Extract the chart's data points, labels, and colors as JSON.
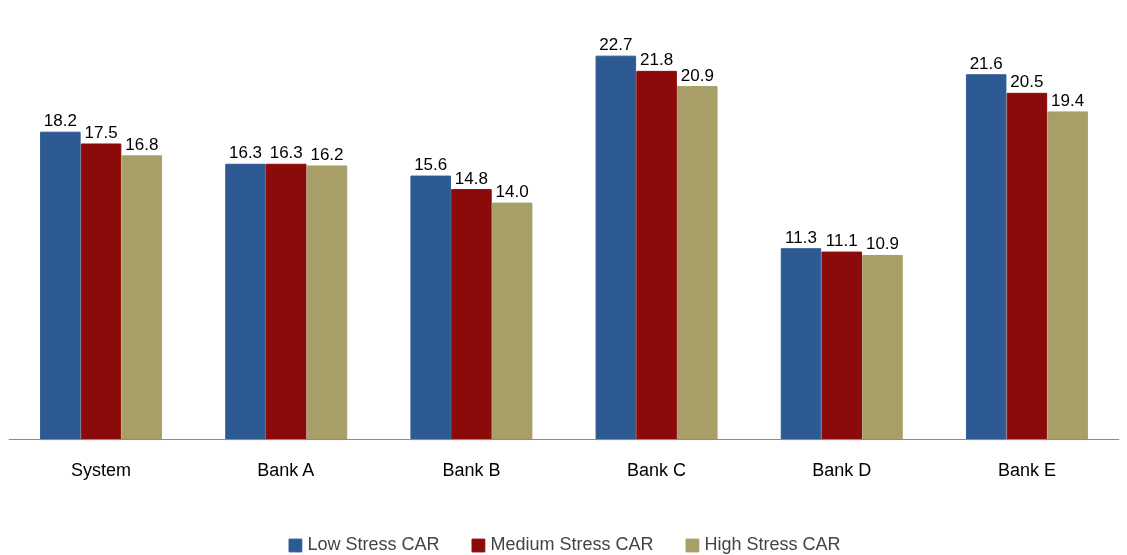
{
  "chart_data": {
    "type": "bar",
    "categories": [
      "System",
      "Bank A",
      "Bank B",
      "Bank C",
      "Bank D",
      "Bank E"
    ],
    "series": [
      {
        "name": "Low Stress CAR",
        "color": "#2e5a94",
        "values": [
          18.2,
          16.3,
          15.6,
          22.7,
          11.3,
          21.6
        ],
        "value_labels": [
          "18.2",
          "16.3",
          "15.6",
          "22.7",
          "11.3",
          "21.6"
        ]
      },
      {
        "name": "Medium Stress CAR",
        "color": "#8b0a0a",
        "values": [
          17.5,
          16.3,
          14.8,
          21.8,
          11.1,
          20.5
        ],
        "value_labels": [
          "17.5",
          "16.3",
          "14.8",
          "21.8",
          "11.1",
          "20.5"
        ]
      },
      {
        "name": "High Stress CAR",
        "color": "#a89f68",
        "values": [
          16.8,
          16.2,
          14.0,
          20.9,
          10.9,
          19.4
        ],
        "value_labels": [
          "16.8",
          "16.2",
          "14.0",
          "20.9",
          "10.9",
          "19.4"
        ]
      }
    ],
    "legend": "bottom",
    "grid": false
  }
}
